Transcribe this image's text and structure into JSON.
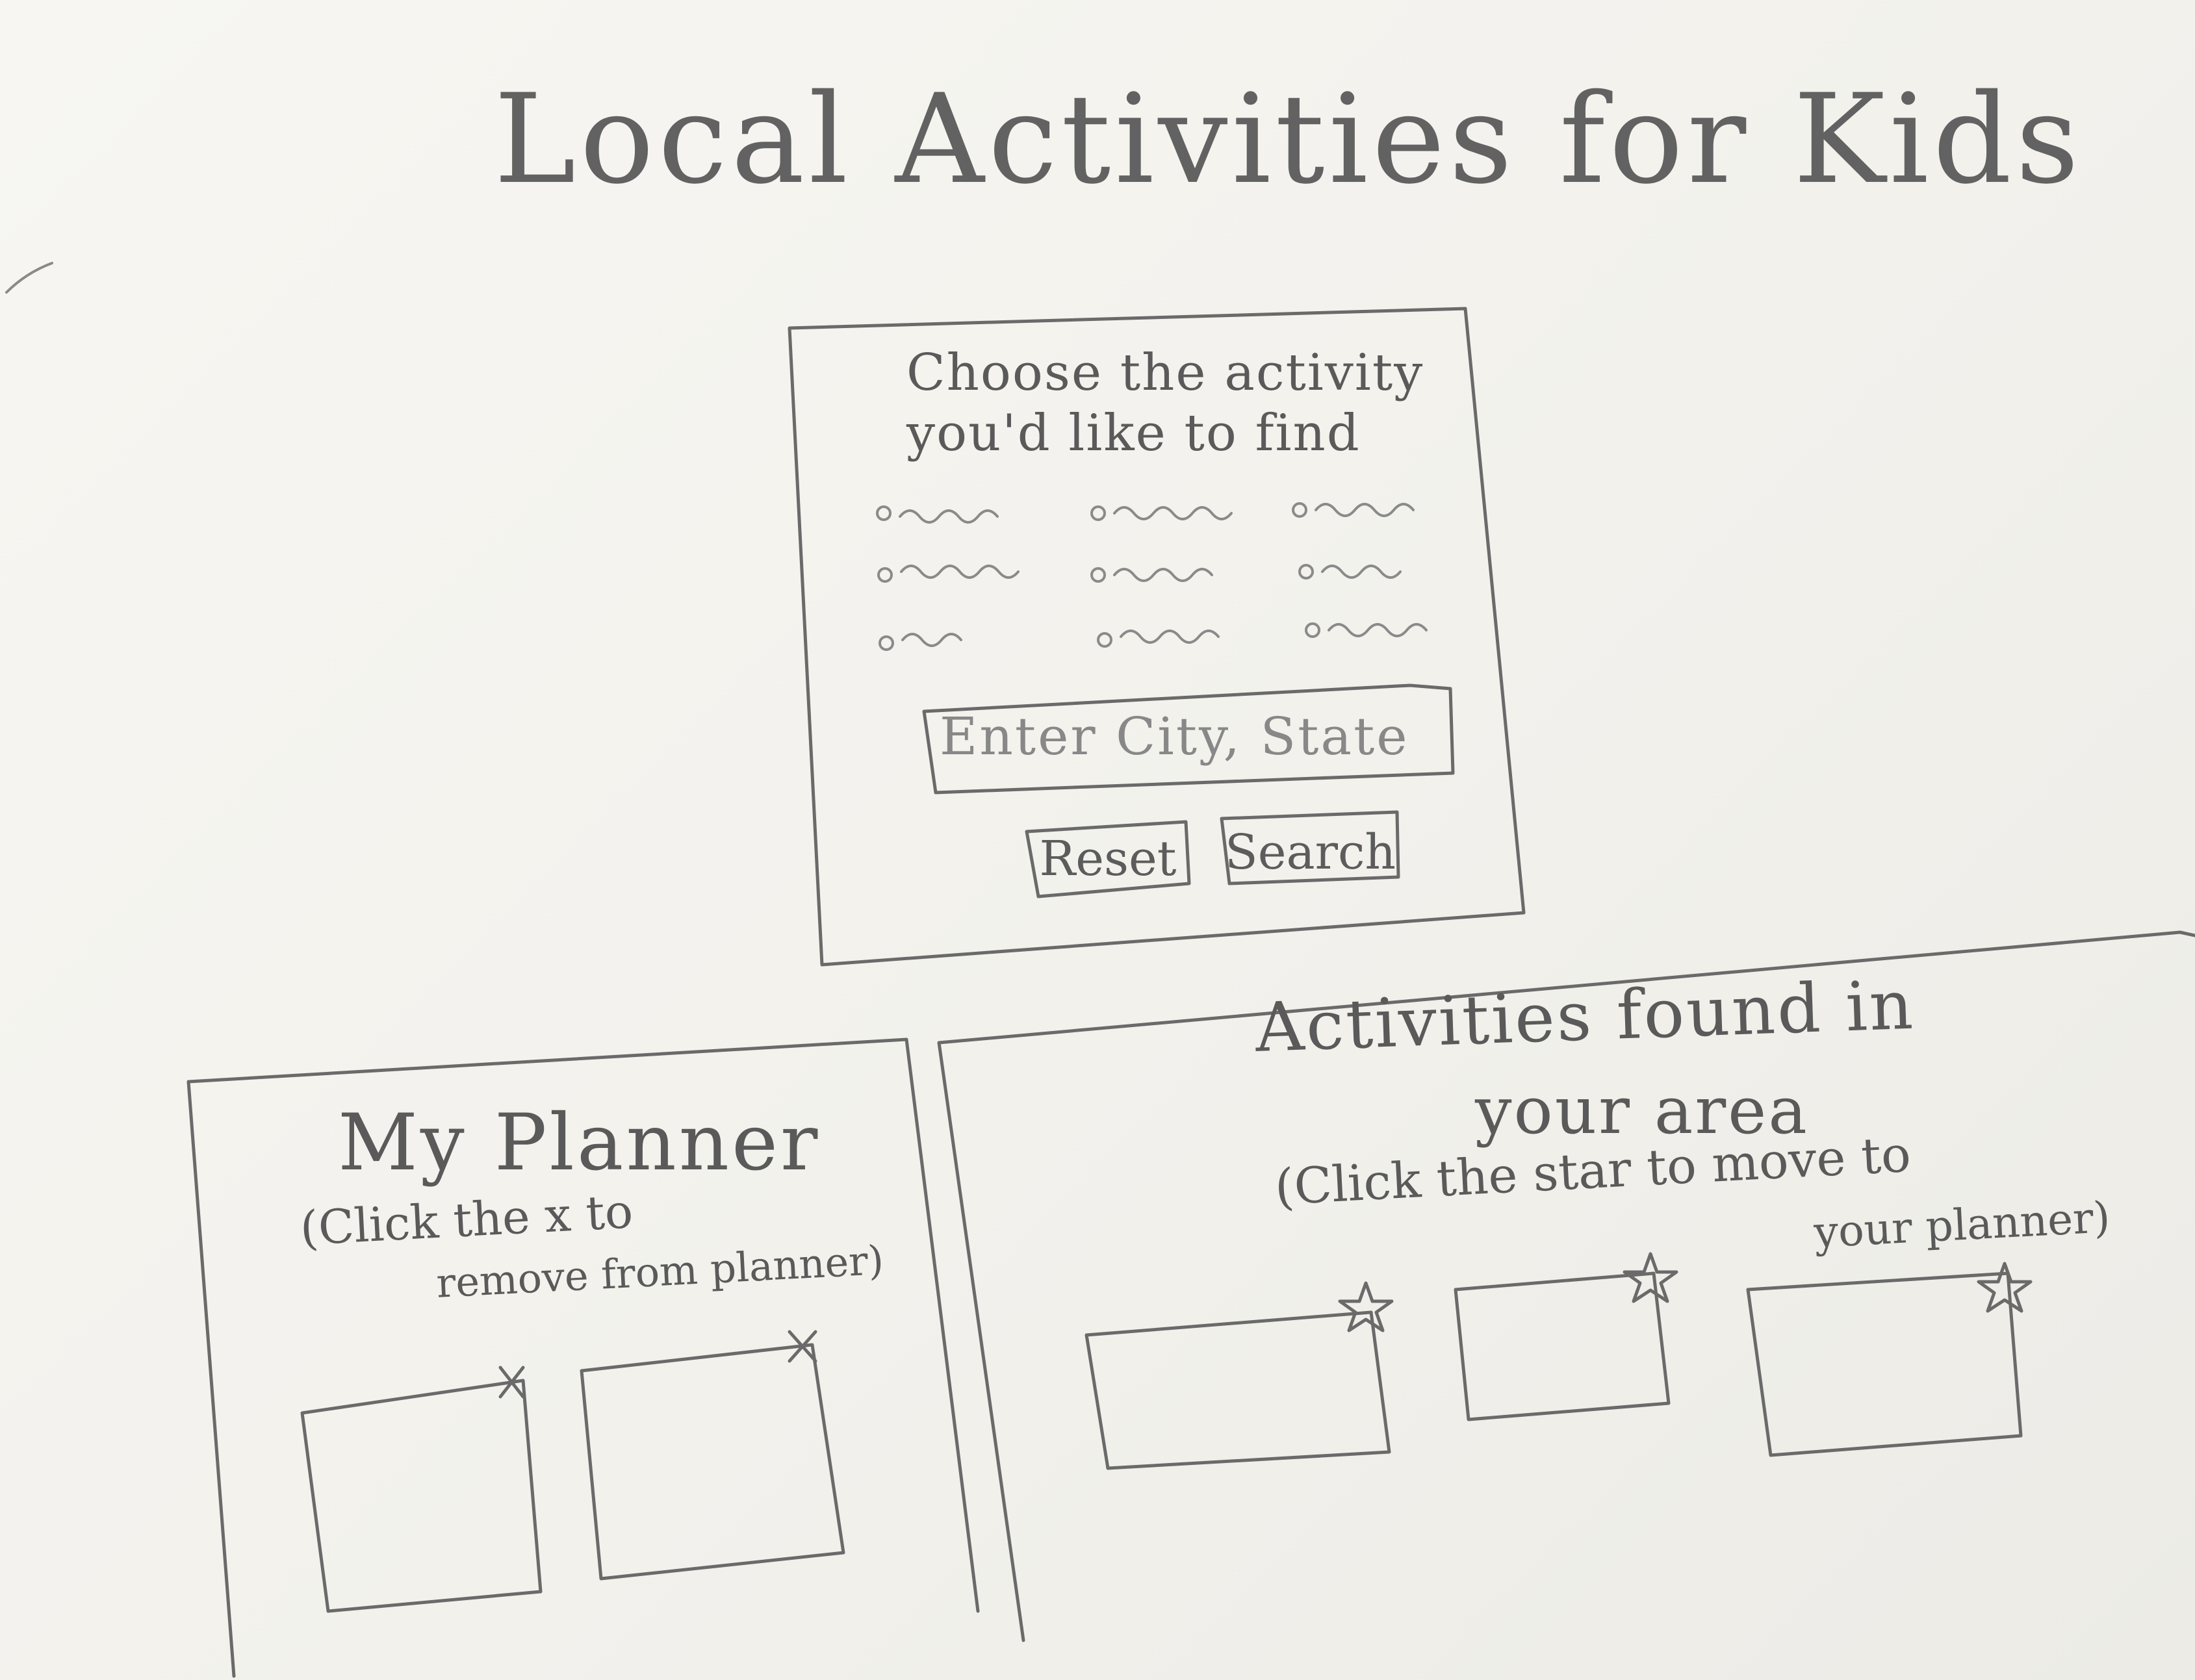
{
  "header": {
    "title": "Local Activities for Kids"
  },
  "search_panel": {
    "prompt_line_1": "Choose the activity",
    "prompt_line_2": "you'd like to find",
    "activity_options_count": 9,
    "city_input": {
      "value": "",
      "placeholder": "Enter City, State"
    },
    "reset_label": "Reset",
    "search_label": "Search"
  },
  "planner": {
    "title": "My Planner",
    "hint_line_1": "(Click the x to",
    "hint_line_2": "remove from planner)",
    "remove_icon": "x-icon",
    "cards_count": 2
  },
  "results": {
    "title_line_1": "Activities found in",
    "title_line_2": "your area",
    "hint_line_1": "(Click the star to move to",
    "hint_line_2": "your planner)",
    "save_icon": "star-icon",
    "cards_count": 3
  },
  "style": {
    "paper_color": "#f4f3ef",
    "pencil_color": "#6a6a6a"
  }
}
